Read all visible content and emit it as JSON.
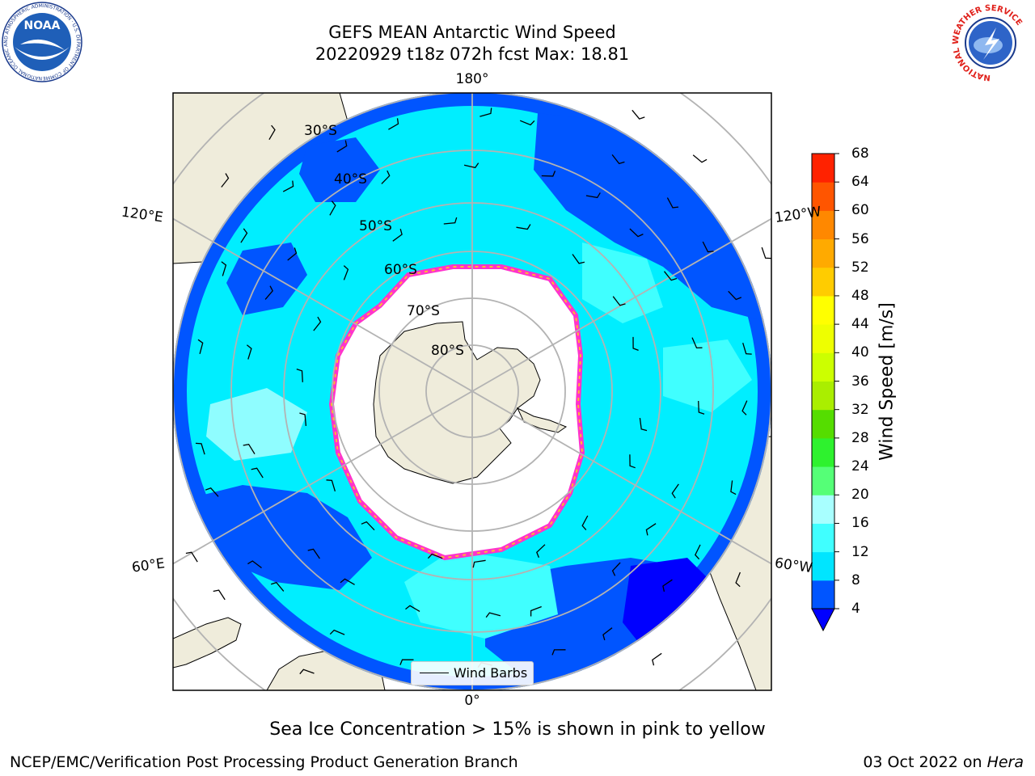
{
  "title": {
    "line1": "GEFS MEAN Antarctic Wind Speed",
    "line2": "20220929 t18z 072h fcst   Max: 18.81"
  },
  "map": {
    "projection": "south-polar-stereographic",
    "longitude_labels": [
      "180°",
      "120°E",
      "120°W",
      "60°E",
      "60°W",
      "0°"
    ],
    "latitude_labels": [
      "30°S",
      "40°S",
      "50°S",
      "60°S",
      "70°S",
      "80°S"
    ],
    "land_color": "#efecdb",
    "gridline_color": "#b3b3b3",
    "sea_ice_colors": [
      "#ff33cc",
      "#ffb833"
    ]
  },
  "legend": {
    "label": "Wind Barbs"
  },
  "colorbar": {
    "label": "Wind Speed [m/s]",
    "ticks": [
      "4",
      "8",
      "12",
      "16",
      "20",
      "24",
      "28",
      "32",
      "36",
      "40",
      "44",
      "48",
      "52",
      "56",
      "60",
      "64",
      "68"
    ],
    "colors": [
      "#0055ff",
      "#00e5ff",
      "#40ffff",
      "#a8ffff",
      "#55ff77",
      "#2ef22e",
      "#55dd00",
      "#aaee00",
      "#ccff00",
      "#eeff00",
      "#ffff00",
      "#ffcc00",
      "#ffaa00",
      "#ff8800",
      "#ff5500",
      "#ff2200"
    ],
    "under_color": "#0000ff"
  },
  "caption": "Sea Ice Concentration > 15% is shown in pink to yellow",
  "footer": {
    "left": "NCEP/EMC/Verification Post Processing Product Generation Branch",
    "right_prefix": "03 Oct 2022 on ",
    "right_machine": "Hera"
  },
  "logos": {
    "noaa": {
      "text": "NOAA",
      "ring": "NATIONAL OCEANIC AND ATMOSPHERIC ADMINISTRATION · U.S. DEPARTMENT OF COMMERCE"
    },
    "nws": {
      "text": "NATIONAL WEATHER SERVICE"
    }
  }
}
